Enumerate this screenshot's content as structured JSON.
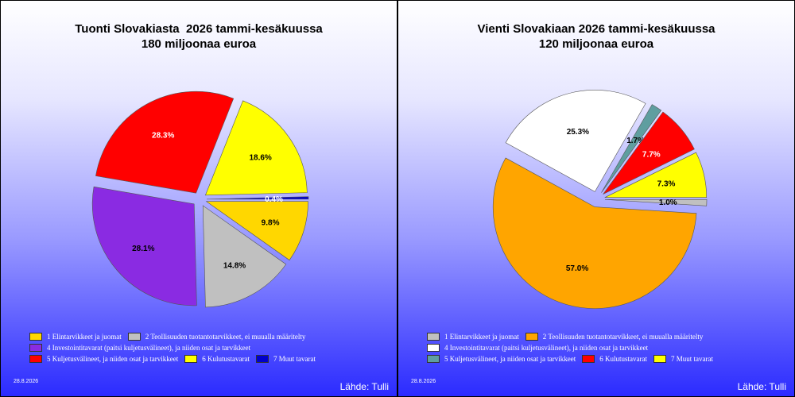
{
  "chart_data": [
    {
      "type": "pie",
      "title": "Tuonti Slovakiasta  2026 tammi-kesäkuussa",
      "subtitle": "180 miljoonaa euroa",
      "categories": [
        "1 Elintarvikkeet ja juomat",
        "2 Teollisuuden tuotantotarvikkeet, ei muualla määritelty",
        "4 Investointitavarat (paitsi kuljetusvälineet), ja niiden osat ja tarvikkeet",
        "5 Kuljetusvälineet, ja niiden osat ja tarvikkeet",
        "6 Kulutustavarat",
        "7 Muut tavarat"
      ],
      "values": [
        9.8,
        14.8,
        28.1,
        28.3,
        18.6,
        0.4
      ],
      "labels": [
        "9.8%",
        "14.8%",
        "28.1%",
        "28.3%",
        "18.6%",
        "0.4%"
      ],
      "colors": [
        "#ffd700",
        "#c0c0c0",
        "#8a2be2",
        "#ff0000",
        "#ffff00",
        "#0000cc"
      ],
      "label_colors": [
        "#000000",
        "#000000",
        "#000000",
        "#ffffff",
        "#000000",
        "#ffffff"
      ],
      "legend_rows": [
        [
          0,
          1
        ],
        [
          2
        ],
        [
          3,
          4,
          5
        ]
      ],
      "date": "28.8.2026",
      "source": "Lähde: Tulli"
    },
    {
      "type": "pie",
      "title": "Vienti Slovakiaan 2026 tammi-kesäkuussa",
      "subtitle": "120 miljoonaa euroa",
      "categories": [
        "1 Elintarvikkeet ja juomat",
        "2 Teollisuuden tuotantotarvikkeet, ei muualla määritelty",
        "4 Investointitavarat (paitsi kuljetusvälineet), ja niiden osat ja tarvikkeet",
        "5 Kuljetusvälineet, ja niiden osat ja tarvikkeet",
        "6 Kulutustavarat",
        "7 Muut tavarat"
      ],
      "values": [
        1.0,
        57.0,
        25.3,
        1.7,
        7.7,
        7.3
      ],
      "labels": [
        "1.0%",
        "57.0%",
        "25.3%",
        "1.7%",
        "7.7%",
        "7.3%"
      ],
      "colors": [
        "#c0c0c0",
        "#ffa500",
        "#ffffff",
        "#5f9ea0",
        "#ff0000",
        "#ffff00"
      ],
      "label_colors": [
        "#000000",
        "#000000",
        "#000000",
        "#000000",
        "#ffffff",
        "#000000"
      ],
      "legend_rows": [
        [
          0,
          1
        ],
        [
          2
        ],
        [
          3,
          4,
          5
        ]
      ],
      "date": "28.8.2026",
      "source": "Lähde: Tulli"
    }
  ]
}
